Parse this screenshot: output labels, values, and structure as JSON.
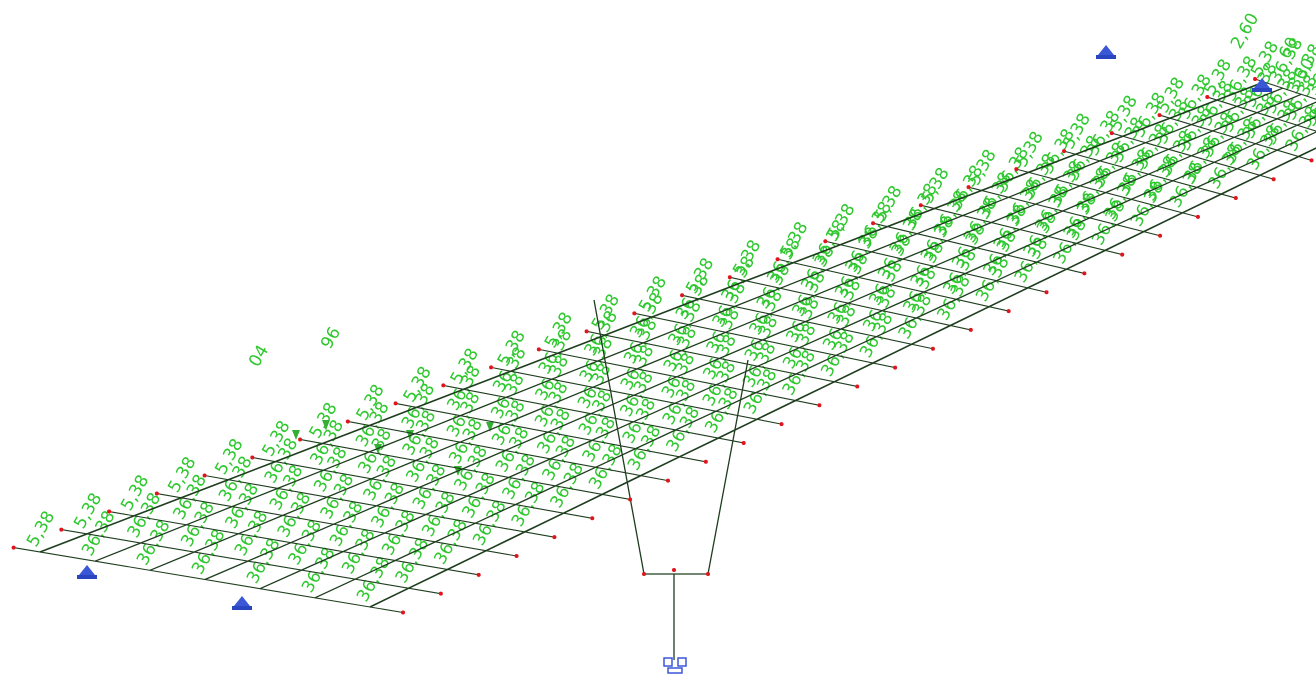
{
  "viewport": {
    "background": "#ffffff",
    "member_color": "#1e3d1e",
    "node_color": "#e0141c",
    "load_color": "#2ec82e",
    "support_color": "#3a57d8",
    "load_labels": {
      "edge_value": "5,38",
      "inner_value": "36,38",
      "right_values": [
        "60",
        "3,30",
        "2,60"
      ],
      "left_values": [
        "96",
        "04"
      ]
    },
    "icons": [
      "hinged-support-icon",
      "fixed-support-icon",
      "nodal-load-arrow-icon"
    ]
  }
}
